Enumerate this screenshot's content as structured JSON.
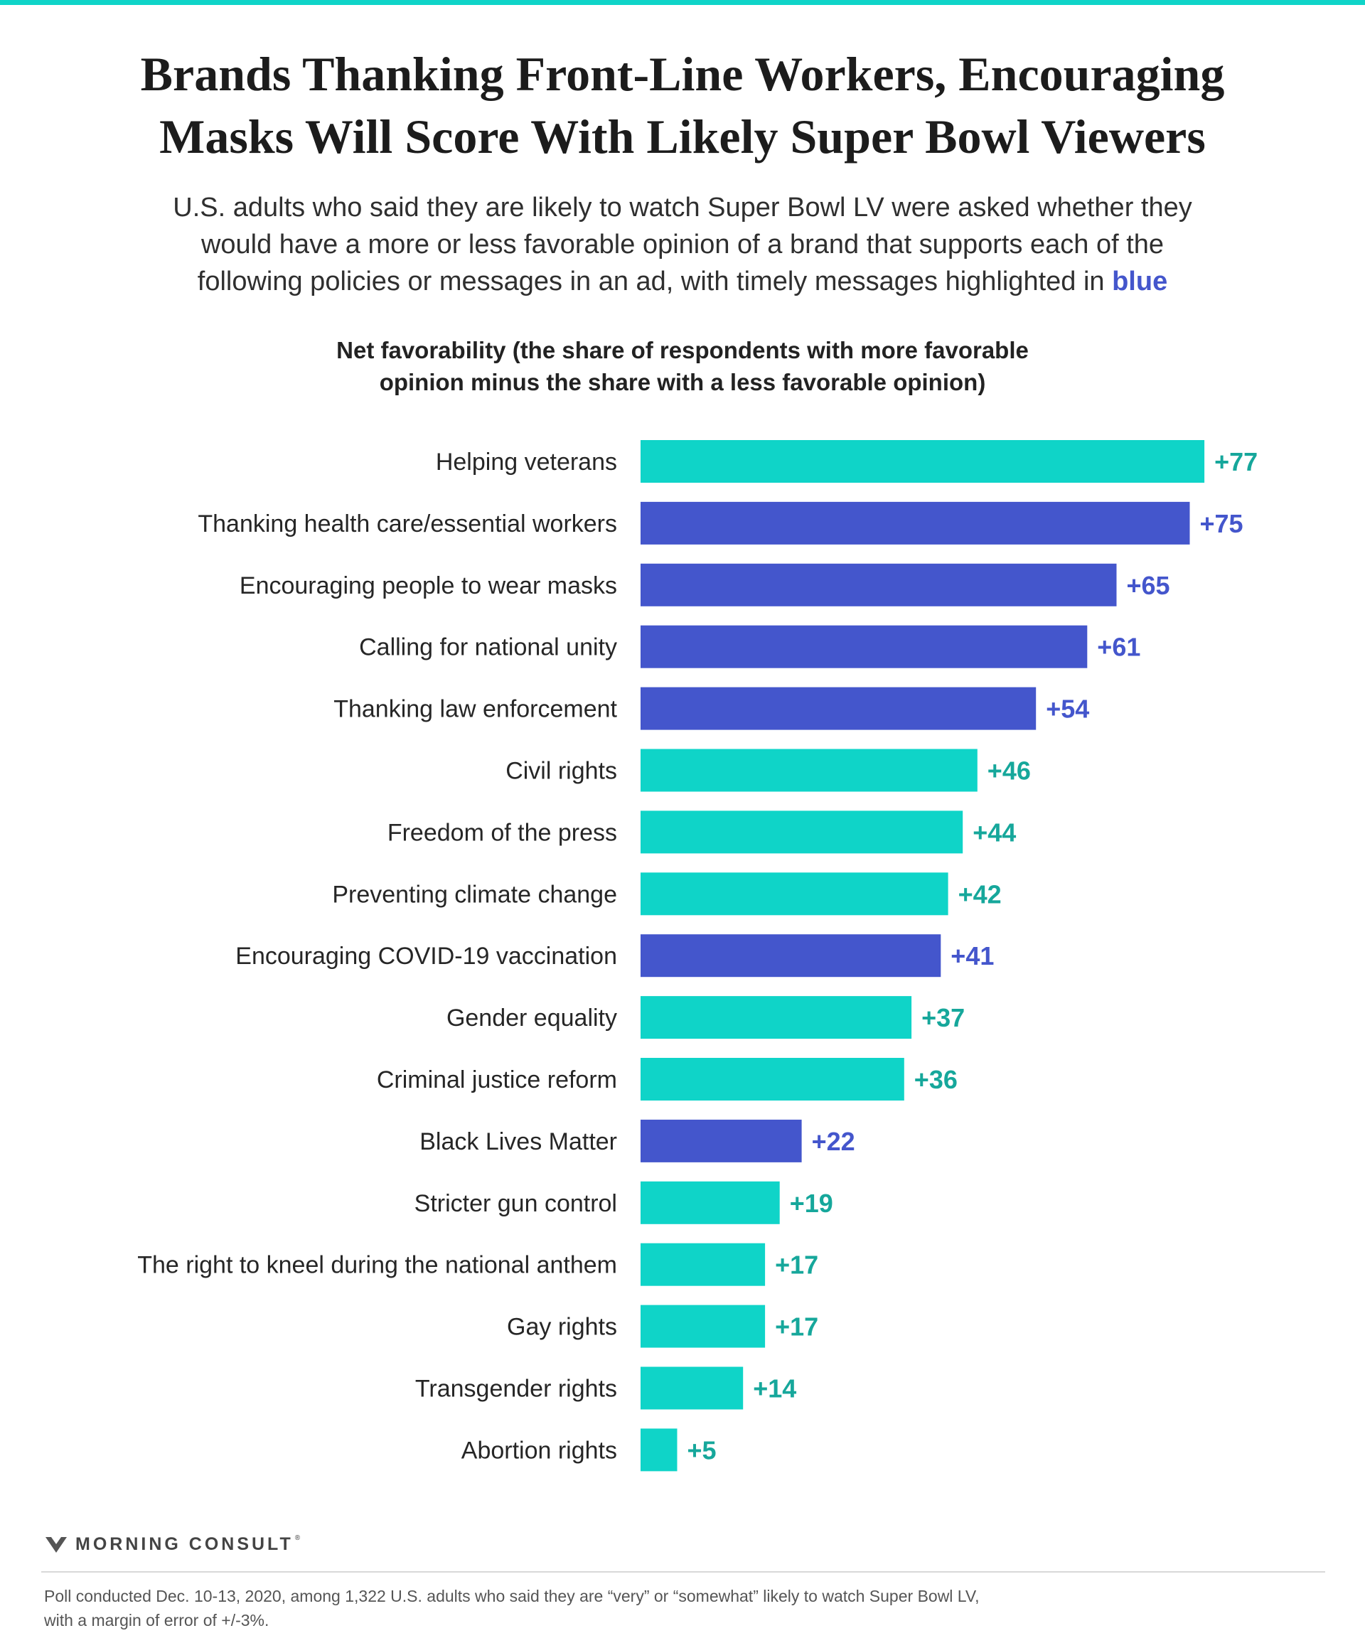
{
  "header": {
    "title_line1": "Brands Thanking Front-Line Workers, Encouraging",
    "title_line2": "Masks Will Score With Likely Super Bowl Viewers",
    "subtitle_line1": "U.S. adults who said they are likely to watch Super Bowl LV were asked whether they",
    "subtitle_line2": "would have a more or less favorable opinion of a brand that supports each of the",
    "subtitle_line3_prefix": "following policies or messages in an ad, with timely messages highlighted in",
    "subtitle_highlight": "blue"
  },
  "chart_heading": {
    "line1": "Net favorability (the share of respondents with more favorable",
    "line2": "opinion minus the share with a less favorable opinion)"
  },
  "colors": {
    "accent_teal": "#0fd4c8",
    "teal_label": "#16a79b",
    "highlight_blue": "#4456cc"
  },
  "chart_data": {
    "type": "bar",
    "orientation": "horizontal",
    "title": "Net favorability (the share of respondents with more favorable opinion minus the share with a less favorable opinion)",
    "categories": [
      "Helping veterans",
      "Thanking health care/essential workers",
      "Encouraging people to wear masks",
      "Calling for national unity",
      "Thanking law enforcement",
      "Civil rights",
      "Freedom of the press",
      "Preventing climate change",
      "Encouraging COVID-19 vaccination",
      "Gender equality",
      "Criminal justice reform",
      "Black Lives Matter",
      "Stricter gun control",
      "The right to kneel during the national anthem",
      "Gay rights",
      "Transgender rights",
      "Abortion rights"
    ],
    "values": [
      77,
      75,
      65,
      61,
      54,
      46,
      44,
      42,
      41,
      37,
      36,
      22,
      19,
      17,
      17,
      14,
      5
    ],
    "value_labels": [
      "+77",
      "+75",
      "+65",
      "+61",
      "+54",
      "+46",
      "+44",
      "+42",
      "+41",
      "+37",
      "+36",
      "+22",
      "+19",
      "+17",
      "+17",
      "+14",
      "+5"
    ],
    "timely": [
      false,
      true,
      true,
      true,
      true,
      false,
      false,
      false,
      true,
      false,
      false,
      true,
      false,
      false,
      false,
      false,
      false
    ],
    "xlim": [
      0,
      80
    ],
    "grid": false,
    "legend": "none"
  },
  "brand": {
    "name": "MORNING CONSULT",
    "mark": "®"
  },
  "footnote": {
    "line1": "Poll conducted Dec. 10-13, 2020, among 1,322 U.S. adults who said they are “very” or “somewhat” likely to watch Super Bowl LV,",
    "line2": "with a margin of error of +/-3%."
  }
}
